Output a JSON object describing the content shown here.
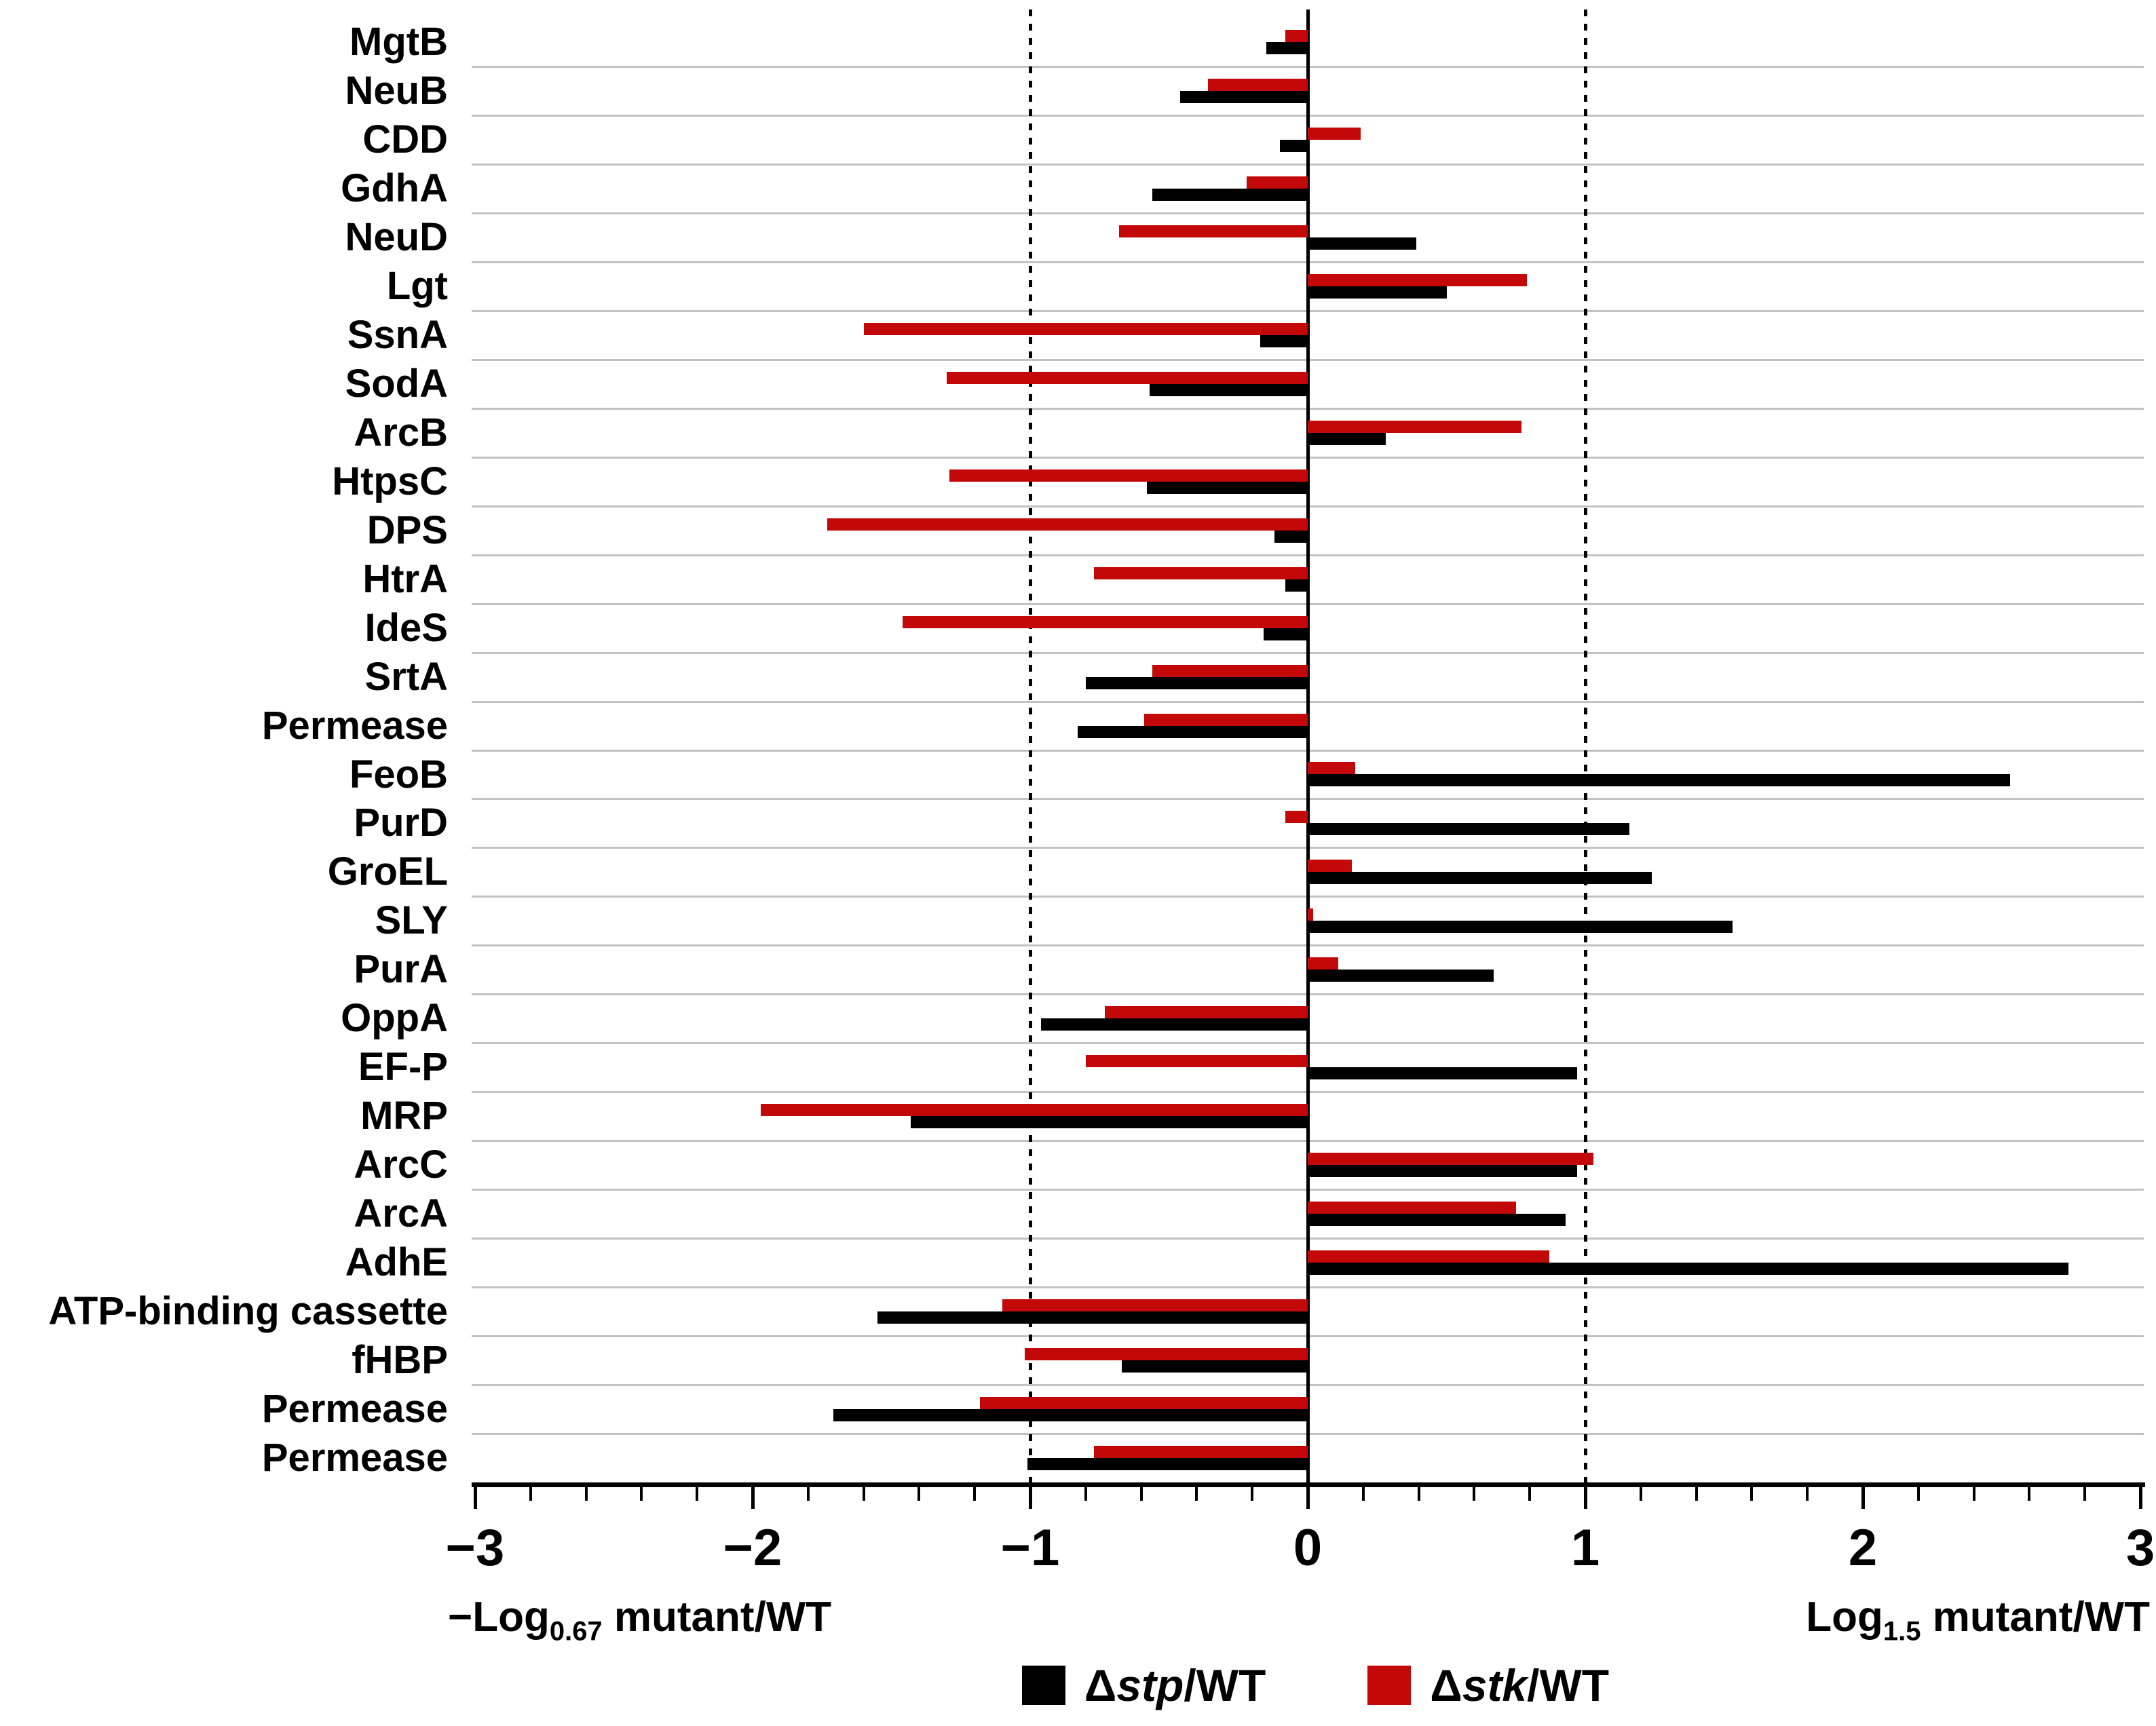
{
  "chart_data": {
    "type": "bar",
    "orientation": "horizontal",
    "title": "",
    "categories": [
      "MgtB",
      "NeuB",
      "CDD",
      "GdhA",
      "NeuD",
      "Lgt",
      "SsnA",
      "SodA",
      "ArcB",
      "HtpsC",
      "DPS",
      "HtrA",
      "IdeS",
      "SrtA",
      "Permease",
      "FeoB",
      "PurD",
      "GroEL",
      "SLY",
      "PurA",
      "OppA",
      "EF-P",
      "MRP",
      "ArcC",
      "ArcA",
      "AdhE",
      "ATP-binding cassette",
      "fHBP",
      "Permease",
      "Permease"
    ],
    "series": [
      {
        "name": "Δstp/WT",
        "color": "#000000",
        "values": [
          -0.15,
          -0.46,
          -0.1,
          -0.56,
          0.39,
          0.5,
          -0.17,
          -0.57,
          0.28,
          -0.58,
          -0.12,
          -0.08,
          -0.16,
          -0.8,
          -0.83,
          2.53,
          1.16,
          1.24,
          1.53,
          0.67,
          -0.96,
          0.97,
          -1.43,
          0.97,
          0.93,
          2.74,
          -1.55,
          -0.67,
          -1.71,
          -1.01
        ]
      },
      {
        "name": "Δstk/WT",
        "color": "#C20808",
        "values": [
          -0.08,
          -0.36,
          0.19,
          -0.22,
          -0.68,
          0.79,
          -1.6,
          -1.3,
          0.77,
          -1.29,
          -1.73,
          -0.77,
          -1.46,
          -0.56,
          -0.59,
          0.17,
          -0.08,
          0.16,
          0.02,
          0.11,
          -0.73,
          -0.8,
          -1.97,
          1.03,
          0.75,
          0.87,
          -1.1,
          -1.02,
          -1.18,
          -0.77
        ]
      }
    ],
    "xlim": [
      -3,
      3
    ],
    "x_ticks": [
      -3,
      -2,
      -1,
      0,
      1,
      2,
      3
    ],
    "x_tick_labels": [
      "−3",
      "−2",
      "−1",
      "0",
      "1",
      "2",
      "3"
    ],
    "minor_tick_step": 0.2,
    "reference_lines_x": [
      -1,
      1
    ],
    "zero_line": true,
    "grid": "horizontal-separators",
    "legend_position": "bottom",
    "xlabel_left": {
      "pre": "−Log",
      "sub": "0.67",
      "post": " mutant/WT"
    },
    "xlabel_right": {
      "pre": "Log",
      "sub": "1.5",
      "post": " mutant/WT"
    }
  },
  "legend": {
    "items": [
      {
        "prefix": "Δ",
        "italic": "stp",
        "suffix": "/WT",
        "color": "#000000"
      },
      {
        "prefix": "Δ",
        "italic": "stk",
        "suffix": "/WT",
        "color": "#C20808"
      }
    ]
  },
  "colors": {
    "bar_black": "#000000",
    "bar_red": "#C20808",
    "grid": "#C2C2C2",
    "axis": "#000000",
    "background": "#FFFFFF"
  }
}
